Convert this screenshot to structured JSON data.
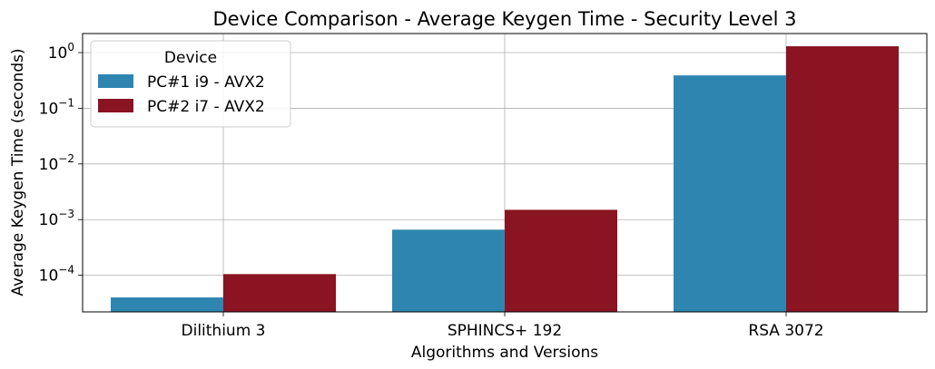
{
  "chart_data": {
    "type": "bar",
    "title": "Device Comparison - Average Keygen Time - Security Level 3",
    "xlabel": "Algorithms and Versions",
    "ylabel": "Average Keygen Time (seconds)",
    "yscale": "log",
    "ylim": [
      2.2e-05,
      2.2
    ],
    "categories": [
      "Dilithium 3",
      "SPHINCS+ 192",
      "RSA 3072"
    ],
    "series": [
      {
        "name": "PC#1 i9 - AVX2",
        "color": "#2e86b0",
        "values": [
          4e-05,
          0.00066,
          0.39
        ]
      },
      {
        "name": "PC#2 i7 - AVX2",
        "color": "#8a1422",
        "values": [
          0.000105,
          0.0015,
          1.3
        ]
      }
    ],
    "yticks": [
      {
        "value": 0.0001,
        "base": "10",
        "exp": "−4"
      },
      {
        "value": 0.001,
        "base": "10",
        "exp": "−3"
      },
      {
        "value": 0.01,
        "base": "10",
        "exp": "−2"
      },
      {
        "value": 0.1,
        "base": "10",
        "exp": "−1"
      },
      {
        "value": 1,
        "base": "10",
        "exp": "0"
      }
    ],
    "legend": {
      "title": "Device",
      "position": "upper-left"
    },
    "grid": true
  }
}
